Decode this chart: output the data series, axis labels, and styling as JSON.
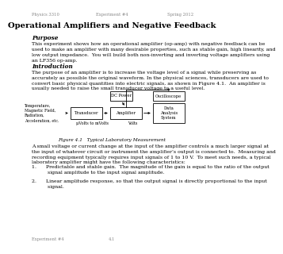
{
  "header_left": "Physics 3310",
  "header_center": "Experiment #4",
  "header_right": "Spring 2012",
  "title": "Operational Amplifiers and Negative Feedback",
  "section1_title": "Purpose",
  "section1_body": "This experiment shows how an operational amplifier (op-amp) with negative feedback can be\nused to make an amplifier with many desirable properties, such as stable gain, high linearity, and\nlow output impedance.  You will build both non-inverting and inverting voltage amplifiers using\nan LF356 op-amp.",
  "section2_title": "Introduction",
  "section2_body": "The purpose of an amplifier is to increase the voltage level of a signal while preserving as\naccurately as possible the original waveform. In the physical sciences, transducers are used to\nconvert basic physical quantities into electric signals, as shown in Figure 4.1.  An amplifier is\nusually needed to raise the small transducer voltage to a useful level.",
  "diagram_label_left": "Temperature,\nMagnetic Field,\nRadiation,\nAcceleration, etc.",
  "diagram_box1": "Transducer",
  "diagram_box2": "Amplifier",
  "diagram_box3": "Oscilloscope",
  "diagram_box4": "Data\nAnalysis\nSystem",
  "diagram_label_dc": "DC Power",
  "diagram_label_bottom1": "μVolts to mVolts",
  "diagram_label_bottom2": "Volts",
  "figure_caption": "Figure 4.1   Typical Laboratory Measurement",
  "section3_body": "A small voltage or current change at the input of the amplifier controls a much larger signal at\nthe input of whatever circuit or instrument the amplifier’s output is connected to.  Measuring and\nrecording equipment typically requires input signals of 1 to 10 V.  To meet such needs, a typical\nlaboratory amplifier might have the following characteristics:",
  "list_item1": "1.      Predictable and stable gain.  The magnitude of the gain is equal to the ratio of the output\n          signal amplitude to the input signal amplitude.",
  "list_item2": "2.      Linear amplitude response, so that the output signal is directly proportional to the input\n          signal.",
  "footer_left": "Experiment #4",
  "footer_center": "4.1",
  "background_color": "#ffffff",
  "text_color": "#000000",
  "header_color": "#888888"
}
